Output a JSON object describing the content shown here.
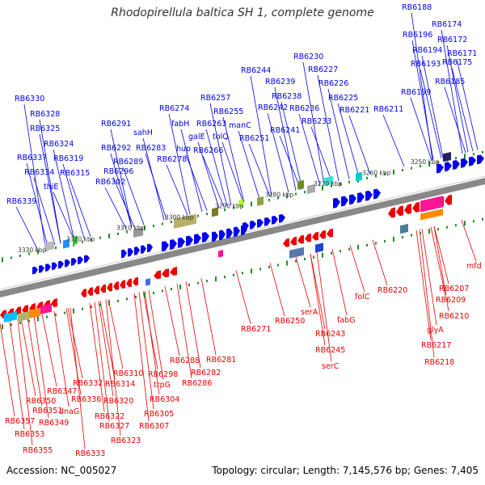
{
  "title": "Rhodopirellula baltica SH 1, complete genome",
  "footer": {
    "accession": "Accession: NC_005027",
    "summary": "Topology: circular; Length: 7,145,576 bp; Genes: 7,405"
  },
  "colors": {
    "forward_gene": "#0000ee",
    "reverse_gene": "#ee0000",
    "backbone": "#888888",
    "tick": "#228b22"
  },
  "scale_ticks": [
    "3330 kbp",
    "3320 kbp",
    "3310 kbp",
    "3300 kbp",
    "3290 kbp",
    "3280 kbp",
    "3270 kbp",
    "3260 kbp",
    "3250 kbp"
  ],
  "top_labels": [
    "RB6188",
    "RB6174",
    "RB6196",
    "RB6172",
    "RB6194",
    "RB6171",
    "RB6193",
    "RB6175",
    "RB6230",
    "RB6227",
    "RB6244",
    "RB6239",
    "RB6226",
    "RB6238",
    "RB6225",
    "RB6185",
    "RB6199",
    "RB6330",
    "RB6257",
    "RB6274",
    "RB6242",
    "RB6236",
    "RB6221",
    "RB6211",
    "RB6328",
    "RB6255",
    "RB6233",
    "RB6291",
    "fabH",
    "RB6263",
    "manC",
    "RB6241",
    "sahH",
    "RB6325",
    "galE",
    "tolQ",
    "RB6251",
    "RB6324",
    "RB6292",
    "hup",
    "RB6283",
    "RB6266",
    "RB6337",
    "RB6319",
    "RB6289",
    "RB6278",
    "RB6334",
    "RB6315",
    "RB6296",
    "thiE",
    "RB6302",
    "RB6339"
  ],
  "bottom_labels": [
    "mfd",
    "RB6220",
    "RB6207",
    "RB6209",
    "RB6210",
    "glyA",
    "RB6217",
    "RB6218",
    "folC",
    "RB6250",
    "serA",
    "fabG",
    "RB6243",
    "RB6245",
    "serC",
    "RB6271",
    "RB6281",
    "RB6288",
    "RB6282",
    "RB6286",
    "RB6310",
    "RB6298",
    "RB6314",
    "trpG",
    "RB6332",
    "RB6347",
    "RB6336",
    "RB6304",
    "RB6350",
    "RB6320",
    "RB6351",
    "dnaG",
    "RB6305",
    "RB6357",
    "RB6349",
    "RB6322",
    "RB6307",
    "RB6353",
    "RB6327",
    "RB6323",
    "RB6355",
    "RB6333"
  ]
}
